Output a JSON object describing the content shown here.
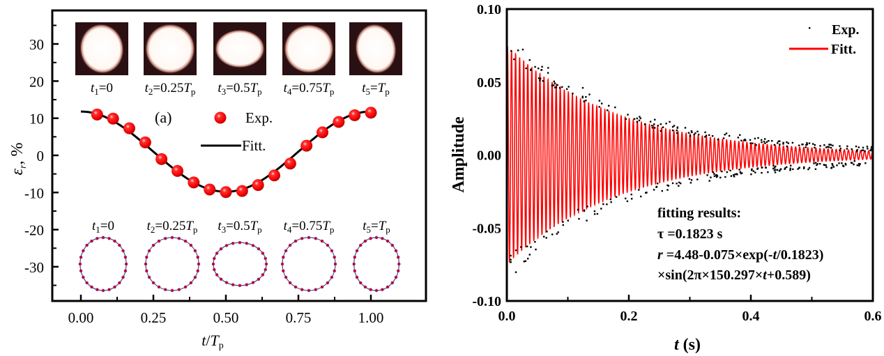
{
  "chart_data": [
    {
      "panel": "left",
      "type": "scatter",
      "panel_label": "(a)",
      "xlabel": "t/T_p",
      "ylabel": "ε_r, %",
      "xlim": [
        -0.05,
        1.09
      ],
      "ylim": [
        -38,
        39
      ],
      "xticks": [
        "0.00",
        "0.25",
        "0.50",
        "0.75",
        "1.00"
      ],
      "xtick_values": [
        0,
        0.25,
        0.5,
        0.75,
        1.0
      ],
      "yticks": [
        "30",
        "20",
        "10",
        "0",
        "-10",
        "-20",
        "-30"
      ],
      "ytick_values": [
        30,
        20,
        10,
        0,
        -10,
        -20,
        -30
      ],
      "legend": [
        {
          "label": "Exp.",
          "marker": "red-sphere"
        },
        {
          "label": "Fitt.",
          "marker": "black-line"
        }
      ],
      "legend_position": "top-center",
      "series": [
        {
          "name": "Exp.",
          "x": [
            0.056,
            0.111,
            0.167,
            0.222,
            0.278,
            0.333,
            0.389,
            0.444,
            0.5,
            0.556,
            0.611,
            0.667,
            0.722,
            0.778,
            0.833,
            0.889,
            0.944,
            1.0
          ],
          "y": [
            11.0,
            9.9,
            7.3,
            3.5,
            -1.0,
            -4.2,
            -7.3,
            -9.2,
            -9.9,
            -9.6,
            -8.0,
            -5.4,
            -2.2,
            2.6,
            6.2,
            9.0,
            10.8,
            11.5
          ]
        },
        {
          "name": "Fitt.",
          "function": "cosine",
          "amplitude": 10.8,
          "offset": 1.0,
          "x_range": [
            0,
            1.0
          ]
        }
      ],
      "image_row_top": {
        "labels": [
          {
            "t": "t",
            "sub": "1",
            "eq": "=0",
            "T": "",
            "Tsub": ""
          },
          {
            "t": "t",
            "sub": "2",
            "eq": "=0.25",
            "T": "T",
            "Tsub": "p"
          },
          {
            "t": "t",
            "sub": "3",
            "eq": "=0.5",
            "T": "T",
            "Tsub": "p"
          },
          {
            "t": "t",
            "sub": "4",
            "eq": "=0.75",
            "T": "T",
            "Tsub": "p"
          },
          {
            "t": "t",
            "sub": "5",
            "eq": "=",
            "T": "T",
            "Tsub": "p"
          }
        ],
        "aspect": [
          0.88,
          1.0,
          1.3,
          1.02,
          0.82
        ]
      },
      "contour_row_bottom": {
        "labels": [
          {
            "t": "t",
            "sub": "1",
            "eq": "=0",
            "T": "",
            "Tsub": ""
          },
          {
            "t": "t",
            "sub": "2",
            "eq": "=0.25",
            "T": "T",
            "Tsub": "p"
          },
          {
            "t": "t",
            "sub": "3",
            "eq": "=0.5",
            "T": "T",
            "Tsub": "p"
          },
          {
            "t": "t",
            "sub": "4",
            "eq": "=0.75",
            "T": "T",
            "Tsub": "p"
          },
          {
            "t": "t",
            "sub": "5",
            "eq": "=",
            "T": "T",
            "Tsub": "p"
          }
        ],
        "aspect": [
          0.87,
          1.05,
          1.3,
          1.03,
          0.85
        ]
      }
    },
    {
      "panel": "right",
      "type": "line",
      "xlabel": "t (s)",
      "ylabel": "Amplitude",
      "xlim": [
        0.0,
        0.6
      ],
      "ylim": [
        -0.1,
        0.1
      ],
      "xticks": [
        "0.0",
        "0.2",
        "0.4",
        "0.6"
      ],
      "xtick_values": [
        0.0,
        0.2,
        0.4,
        0.6
      ],
      "yticks": [
        "0.10",
        "0.05",
        "0.00",
        "-0.05",
        "-0.10"
      ],
      "ytick_values": [
        0.1,
        0.05,
        0.0,
        -0.05,
        -0.1
      ],
      "legend": [
        {
          "label": "Exp.",
          "marker": "black-dot"
        },
        {
          "label": "Fitt.",
          "marker": "red-line"
        }
      ],
      "legend_position": "top-right",
      "series": [
        {
          "name": "Exp.",
          "kind": "scatter",
          "color": "#000000",
          "description": "noisy damped oscillation samples"
        },
        {
          "name": "Fitt.",
          "kind": "damped-sine",
          "color": "#ff0000",
          "amplitude": 0.075,
          "tau": 0.1823,
          "frequency": 150.297,
          "phase": 0.589
        }
      ],
      "annotation": {
        "title": "fitting results:",
        "line1": "τ =0.1823 s",
        "line2_prefix": "r",
        "line2": " =4.48-0.075×exp(-",
        "line2_t": "t",
        "line2_end": "/0.1823)",
        "line3_a": "×sin(2π×150.297×",
        "line3_t": "t",
        "line3_b": "+0.589)"
      }
    }
  ]
}
